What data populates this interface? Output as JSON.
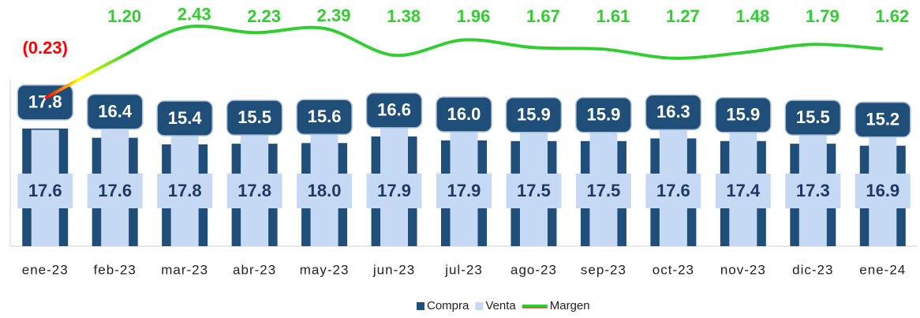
{
  "chart_data": {
    "type": "bar-line",
    "categories": [
      "ene-23",
      "feb-23",
      "mar-23",
      "abr-23",
      "may-23",
      "jun-23",
      "jul-23",
      "ago-23",
      "sep-23",
      "oct-23",
      "nov-23",
      "dic-23",
      "ene-24"
    ],
    "ylim": [
      0,
      37
    ],
    "y2lim": [
      -5.8,
      3.4
    ],
    "series": [
      {
        "name": "Compra",
        "color": "#1f4e79",
        "label_color": "#ffffff",
        "values": [
          17.8,
          16.4,
          15.4,
          15.5,
          15.6,
          16.6,
          16.0,
          15.9,
          15.9,
          16.3,
          15.9,
          15.5,
          15.2
        ],
        "value_labels": [
          "17.8",
          "16.4",
          "15.4",
          "15.5",
          "15.6",
          "16.6",
          "16.0",
          "15.9",
          "15.9",
          "16.3",
          "15.9",
          "15.5",
          "15.2"
        ]
      },
      {
        "name": "Venta",
        "color": "#c6d9f4",
        "label_color": "#1f3864",
        "values": [
          17.6,
          17.6,
          17.8,
          17.8,
          18.0,
          17.9,
          17.9,
          17.5,
          17.5,
          17.6,
          17.4,
          17.3,
          16.9
        ],
        "value_labels": [
          "17.6",
          "17.6",
          "17.8",
          "17.8",
          "18.0",
          "17.9",
          "17.9",
          "17.5",
          "17.5",
          "17.6",
          "17.4",
          "17.3",
          "16.9"
        ]
      },
      {
        "name": "Margen",
        "color": "#33cc33",
        "negative_color": "#ff0000",
        "axis": "y2",
        "values": [
          -0.23,
          1.2,
          2.43,
          2.23,
          2.39,
          1.38,
          1.96,
          1.67,
          1.61,
          1.27,
          1.48,
          1.79,
          1.62
        ],
        "value_labels": [
          "(0.23)",
          "1.20",
          "2.43",
          "2.23",
          "2.39",
          "1.38",
          "1.96",
          "1.67",
          "1.61",
          "1.27",
          "1.48",
          "1.79",
          "1.62"
        ]
      }
    ],
    "legend": "bottom"
  }
}
